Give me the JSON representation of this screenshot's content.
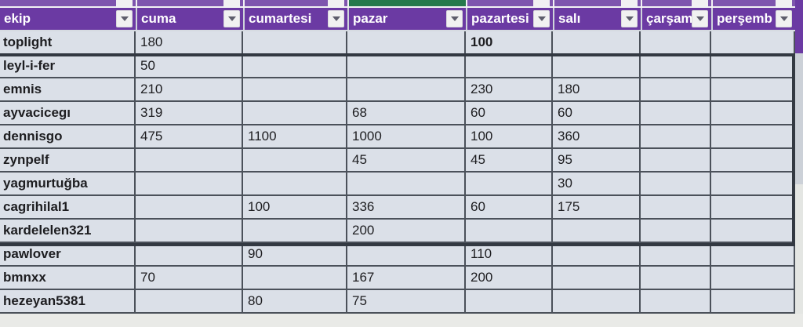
{
  "table": {
    "columns": [
      {
        "key": "ekip",
        "label": "ekip"
      },
      {
        "key": "cuma",
        "label": "cuma"
      },
      {
        "key": "cumartesi",
        "label": "cumartesi"
      },
      {
        "key": "pazar",
        "label": "pazar"
      },
      {
        "key": "pazartesi",
        "label": "pazartesi"
      },
      {
        "key": "sali",
        "label": "salı"
      },
      {
        "key": "carsam",
        "label": "çarşam"
      },
      {
        "key": "persemb",
        "label": "perşemb"
      }
    ],
    "rows": [
      {
        "key": "toplight",
        "name": "toplight",
        "values": [
          "180",
          "",
          "",
          "100",
          "",
          "",
          ""
        ],
        "bold_cols": [
          3
        ]
      },
      {
        "key": "leyl-i-fer",
        "name": "leyl-i-fer",
        "values": [
          "50",
          "",
          "",
          "",
          "",
          "",
          ""
        ],
        "bold_cols": []
      },
      {
        "key": "emnis",
        "name": "emnis",
        "values": [
          "210",
          "",
          "",
          "230",
          "180",
          "",
          ""
        ],
        "bold_cols": []
      },
      {
        "key": "ayvacicegi",
        "name": "ayvacicegı",
        "values": [
          "319",
          "",
          "68",
          "60",
          "60",
          "",
          ""
        ],
        "bold_cols": []
      },
      {
        "key": "dennisgo",
        "name": "dennisgo",
        "values": [
          "475",
          "1100",
          "1000",
          "100",
          "360",
          "",
          ""
        ],
        "bold_cols": []
      },
      {
        "key": "zynpelf",
        "name": "zynpelf",
        "values": [
          "",
          "",
          "45",
          "45",
          "95",
          "",
          ""
        ],
        "bold_cols": []
      },
      {
        "key": "yagmurtugba",
        "name": "yagmurtuğba",
        "values": [
          "",
          "",
          "",
          "",
          "30",
          "",
          ""
        ],
        "bold_cols": []
      },
      {
        "key": "cagrihilal1",
        "name": "cagrihilal1",
        "values": [
          "",
          "100",
          "336",
          "60",
          "175",
          "",
          ""
        ],
        "bold_cols": []
      },
      {
        "key": "kardelelen321",
        "name": "kardelelen321",
        "values": [
          "",
          "",
          "200",
          "",
          "",
          "",
          ""
        ],
        "bold_cols": []
      },
      {
        "key": "pawlover",
        "name": "pawlover",
        "values": [
          "",
          "90",
          "",
          "110",
          "",
          "",
          ""
        ],
        "bold_cols": []
      },
      {
        "key": "bmnxx",
        "name": "bmnxx",
        "values": [
          "70",
          "",
          "167",
          "200",
          "",
          "",
          ""
        ],
        "bold_cols": []
      },
      {
        "key": "hezeyan5381",
        "name": "hezeyan5381",
        "values": [
          "",
          "80",
          "75",
          "",
          "",
          "",
          ""
        ],
        "bold_cols": []
      }
    ]
  },
  "active_column_key": "pazar",
  "selection": {
    "first_row": "leyl-i-fer",
    "last_row": "kardelelen321"
  },
  "icons": {
    "filter": "triangle-down-icon"
  },
  "colors": {
    "header_purple": "#6b3aa3",
    "strip_purple": "#7e55ae",
    "active_column_green": "#26794c",
    "cell_background": "#dbe0e8",
    "grid_line": "#4b515a",
    "selection_border": "#333942",
    "header_text": "#ffffff"
  }
}
